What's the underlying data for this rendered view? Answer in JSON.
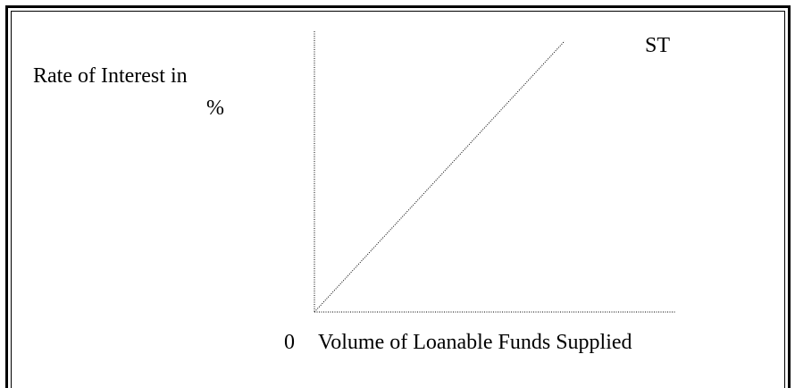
{
  "y_axis_label": {
    "line1": "Rate of Interest in",
    "line2": "%"
  },
  "curve_label": "ST",
  "origin_label": "0",
  "x_axis_label": "Volume of Loanable Funds Supplied"
}
